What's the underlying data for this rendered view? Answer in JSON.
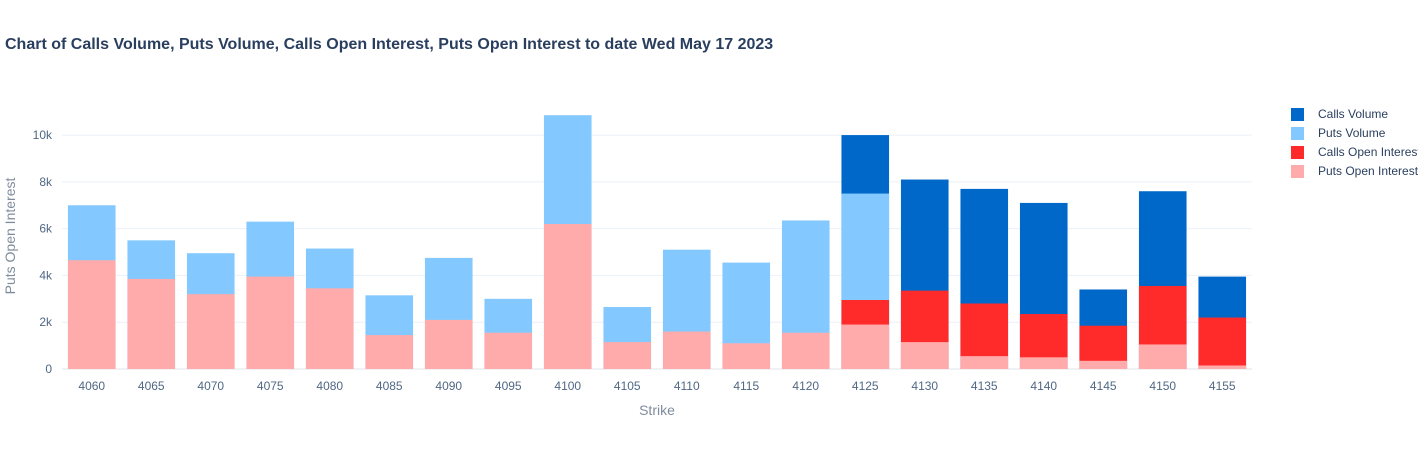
{
  "chart_data": {
    "type": "bar",
    "title": "Chart of Calls Volume, Puts Volume, Calls Open Interest, Puts Open Interest to date Wed May 17 2023",
    "xlabel": "Strike",
    "ylabel": "Puts Open Interest",
    "ylim": [
      0,
      11500
    ],
    "yticks": [
      0,
      2000,
      4000,
      6000,
      8000,
      10000
    ],
    "ytick_labels": [
      "0",
      "2k",
      "4k",
      "6k",
      "8k",
      "10k"
    ],
    "grid": true,
    "legend_position": "right",
    "categories": [
      "4060",
      "4065",
      "4070",
      "4075",
      "4080",
      "4085",
      "4090",
      "4095",
      "4100",
      "4105",
      "4110",
      "4115",
      "4120",
      "4125",
      "4130",
      "4135",
      "4140",
      "4145",
      "4150",
      "4155"
    ],
    "series": [
      {
        "name": "Calls Volume",
        "color": "#0068c9",
        "values": [
          0,
          0,
          0,
          0,
          0,
          0,
          0,
          0,
          0,
          0,
          0,
          0,
          0,
          10000,
          8100,
          7700,
          7100,
          3400,
          7600,
          3950
        ]
      },
      {
        "name": "Puts Volume",
        "color": "#83c9ff",
        "values": [
          7000,
          5500,
          4950,
          6300,
          5150,
          3150,
          4750,
          3000,
          10850,
          2650,
          5100,
          4550,
          6350,
          7500,
          0,
          0,
          0,
          0,
          0,
          0
        ]
      },
      {
        "name": "Calls Open Interest",
        "color": "#ff2b2b",
        "values": [
          0,
          0,
          0,
          0,
          0,
          0,
          0,
          0,
          0,
          0,
          0,
          0,
          0,
          2950,
          3350,
          2800,
          2350,
          1850,
          3550,
          2200
        ]
      },
      {
        "name": "Puts Open Interest",
        "color": "#ffabab",
        "values": [
          4650,
          3850,
          3200,
          3950,
          3450,
          1450,
          2100,
          1550,
          6200,
          1150,
          1600,
          1100,
          1550,
          1900,
          1150,
          550,
          500,
          350,
          1050,
          150
        ]
      }
    ]
  }
}
